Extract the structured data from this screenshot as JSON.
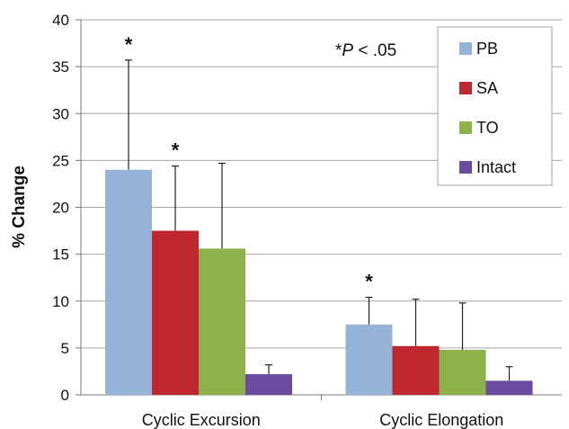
{
  "chart_data": {
    "type": "bar",
    "title": "",
    "xlabel": "",
    "ylabel": "% Change",
    "ylim": [
      0,
      40
    ],
    "yticks": [
      0,
      5,
      10,
      15,
      20,
      25,
      30,
      35,
      40
    ],
    "categories": [
      "Cyclic Excursion",
      "Cyclic Elongation"
    ],
    "series": [
      {
        "name": "PB",
        "color": "#95b3d7",
        "values": [
          24.0,
          7.5
        ],
        "error": [
          11.7,
          2.9
        ],
        "significant": [
          true,
          true
        ]
      },
      {
        "name": "SA",
        "color": "#c0262d",
        "values": [
          17.5,
          5.2
        ],
        "error": [
          6.9,
          5.0
        ],
        "significant": [
          true,
          false
        ]
      },
      {
        "name": "TO",
        "color": "#8db24a",
        "values": [
          15.6,
          4.8
        ],
        "error": [
          9.1,
          5.0
        ],
        "significant": [
          false,
          false
        ]
      },
      {
        "name": "Intact",
        "color": "#6a4ba0",
        "values": [
          2.2,
          1.5
        ],
        "error": [
          1.0,
          1.5
        ],
        "significant": [
          false,
          false
        ]
      }
    ],
    "grid": true,
    "legend_position": "top-right",
    "significance_marker": "*",
    "annotation": {
      "prefix": "*",
      "stat": "P",
      "rest": " < .05"
    }
  }
}
